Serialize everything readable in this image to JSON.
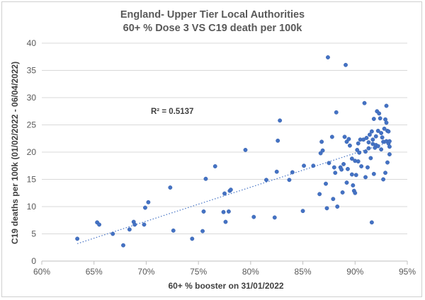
{
  "chart_data": {
    "type": "scatter",
    "title": "England- Upper Tier Local Authorities",
    "subtitle": "60+ % Dose 3 VS C19 death per 100k",
    "xlabel": "60+ % booster on 31/01/2022",
    "ylabel": "C19 deaths per 100k (01/02/2022 - 06/04/2022)",
    "xlim": [
      0.6,
      0.95
    ],
    "ylim": [
      0,
      40
    ],
    "x_ticks": [
      0.6,
      0.65,
      0.7,
      0.75,
      0.8,
      0.85,
      0.9,
      0.95
    ],
    "x_tick_labels": [
      "60%",
      "65%",
      "70%",
      "75%",
      "80%",
      "85%",
      "90%",
      "95%"
    ],
    "y_ticks": [
      0,
      5,
      10,
      15,
      20,
      25,
      30,
      35,
      40
    ],
    "y_tick_labels": [
      "0",
      "5",
      "10",
      "15",
      "20",
      "25",
      "30",
      "35",
      "40"
    ],
    "grid": "horizontal",
    "legend": "none",
    "point_color": "#4472c4",
    "annotations": [
      {
        "text": "R² = 0.5137"
      }
    ],
    "trendline": {
      "type": "linear",
      "x_range": [
        0.634,
        0.932
      ],
      "y_range": [
        3.2,
        21.8
      ]
    },
    "points": [
      [
        0.634,
        4.1
      ],
      [
        0.653,
        7.1
      ],
      [
        0.655,
        6.7
      ],
      [
        0.668,
        5.0
      ],
      [
        0.678,
        2.9
      ],
      [
        0.684,
        5.8
      ],
      [
        0.688,
        7.2
      ],
      [
        0.689,
        6.7
      ],
      [
        0.698,
        6.7
      ],
      [
        0.699,
        9.8
      ],
      [
        0.702,
        10.8
      ],
      [
        0.723,
        13.5
      ],
      [
        0.726,
        5.6
      ],
      [
        0.744,
        4.1
      ],
      [
        0.754,
        5.5
      ],
      [
        0.755,
        9.1
      ],
      [
        0.757,
        15.1
      ],
      [
        0.766,
        17.4
      ],
      [
        0.774,
        9.0
      ],
      [
        0.775,
        12.4
      ],
      [
        0.776,
        7.2
      ],
      [
        0.779,
        9.1
      ],
      [
        0.78,
        12.9
      ],
      [
        0.781,
        13.1
      ],
      [
        0.795,
        20.4
      ],
      [
        0.803,
        8.1
      ],
      [
        0.815,
        14.9
      ],
      [
        0.823,
        8.0
      ],
      [
        0.825,
        16.4
      ],
      [
        0.826,
        22.1
      ],
      [
        0.828,
        25.8
      ],
      [
        0.837,
        14.9
      ],
      [
        0.84,
        16.3
      ],
      [
        0.85,
        9.2
      ],
      [
        0.851,
        17.5
      ],
      [
        0.86,
        17.5
      ],
      [
        0.866,
        12.3
      ],
      [
        0.867,
        19.8
      ],
      [
        0.868,
        21.9
      ],
      [
        0.869,
        20.3
      ],
      [
        0.872,
        14.2
      ],
      [
        0.873,
        9.7
      ],
      [
        0.874,
        37.4
      ],
      [
        0.875,
        18.0
      ],
      [
        0.878,
        22.8
      ],
      [
        0.879,
        11.4
      ],
      [
        0.88,
        17.2
      ],
      [
        0.881,
        16.2
      ],
      [
        0.882,
        27.3
      ],
      [
        0.883,
        10.0
      ],
      [
        0.886,
        17.2
      ],
      [
        0.887,
        16.8
      ],
      [
        0.888,
        12.6
      ],
      [
        0.889,
        17.8
      ],
      [
        0.89,
        22.8
      ],
      [
        0.891,
        36.0
      ],
      [
        0.892,
        14.4
      ],
      [
        0.892,
        21.9
      ],
      [
        0.893,
        16.9
      ],
      [
        0.894,
        22.4
      ],
      [
        0.895,
        21.2
      ],
      [
        0.897,
        18.8
      ],
      [
        0.897,
        15.9
      ],
      [
        0.898,
        13.9
      ],
      [
        0.899,
        12.9
      ],
      [
        0.9,
        18.4
      ],
      [
        0.9,
        12.5
      ],
      [
        0.901,
        15.8
      ],
      [
        0.902,
        20.4
      ],
      [
        0.903,
        18.3
      ],
      [
        0.903,
        21.6
      ],
      [
        0.904,
        19.9
      ],
      [
        0.905,
        22.3
      ],
      [
        0.906,
        17.4
      ],
      [
        0.908,
        22.3
      ],
      [
        0.909,
        29.0
      ],
      [
        0.91,
        15.4
      ],
      [
        0.91,
        20.1
      ],
      [
        0.911,
        22.6
      ],
      [
        0.912,
        17.2
      ],
      [
        0.913,
        21.8
      ],
      [
        0.913,
        20.7
      ],
      [
        0.914,
        23.2
      ],
      [
        0.915,
        18.9
      ],
      [
        0.916,
        7.1
      ],
      [
        0.916,
        23.8
      ],
      [
        0.917,
        22.3
      ],
      [
        0.917,
        21.5
      ],
      [
        0.918,
        26.1
      ],
      [
        0.918,
        16.0
      ],
      [
        0.919,
        20.8
      ],
      [
        0.92,
        22.9
      ],
      [
        0.92,
        21.3
      ],
      [
        0.921,
        27.5
      ],
      [
        0.922,
        23.9
      ],
      [
        0.922,
        21.1
      ],
      [
        0.923,
        27.1
      ],
      [
        0.924,
        26.2
      ],
      [
        0.925,
        23.5
      ],
      [
        0.925,
        20.5
      ],
      [
        0.926,
        22.7
      ],
      [
        0.927,
        15.0
      ],
      [
        0.927,
        21.9
      ],
      [
        0.928,
        24.3
      ],
      [
        0.929,
        26.0
      ],
      [
        0.929,
        16.2
      ],
      [
        0.93,
        22.0
      ],
      [
        0.93,
        25.4
      ],
      [
        0.93,
        28.5
      ],
      [
        0.931,
        23.9
      ],
      [
        0.931,
        18.1
      ],
      [
        0.932,
        21.6
      ],
      [
        0.932,
        23.8
      ],
      [
        0.933,
        22.0
      ],
      [
        0.933,
        21.0
      ],
      [
        0.933,
        19.6
      ]
    ]
  }
}
